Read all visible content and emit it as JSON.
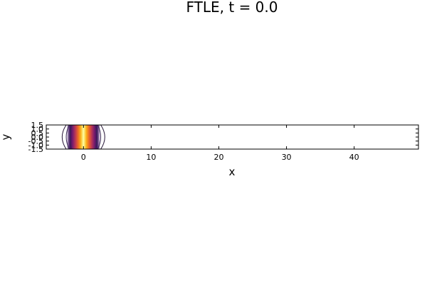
{
  "chart_data": {
    "type": "heatmap",
    "title": "FTLE, t = 0.0",
    "xlabel": "x",
    "ylabel": "y",
    "xlim": [
      -5.5,
      49.5
    ],
    "ylim": [
      -1.5,
      1.5
    ],
    "xticks": [
      0,
      10,
      20,
      30,
      40
    ],
    "xtick_labels": [
      "0",
      "10",
      "20",
      "30",
      "40"
    ],
    "yticks": [
      -1.5,
      -1.0,
      -0.5,
      0.0,
      0.5,
      1.0,
      1.5
    ],
    "ytick_labels": [
      "-1.5",
      "-1.0",
      "-0.5",
      "0.0",
      "0.5",
      "1.0",
      "1.5"
    ],
    "field": {
      "description_values": "FTLE concentrated in a band around x = 0; peak at x = 0, decreasing outward",
      "x_values": [
        -2.4,
        -2.0,
        -1.6,
        -1.2,
        -0.8,
        -0.4,
        0.0,
        0.4,
        0.8,
        1.2,
        1.6,
        2.0,
        2.4
      ],
      "intensity": [
        0.05,
        0.15,
        0.35,
        0.55,
        0.75,
        0.9,
        1.0,
        0.9,
        0.75,
        0.55,
        0.35,
        0.15,
        0.05
      ]
    },
    "contours": [
      {
        "level": "outer",
        "x_center_offset": 2.55,
        "bulge": 0.6
      },
      {
        "level": "mid",
        "x_center_offset": 2.1,
        "bulge": 0.45
      },
      {
        "level": "inner",
        "x_center_offset": 1.7,
        "bulge": 0.3
      }
    ],
    "colormap": "inferno",
    "grid": false,
    "legend": "none"
  }
}
